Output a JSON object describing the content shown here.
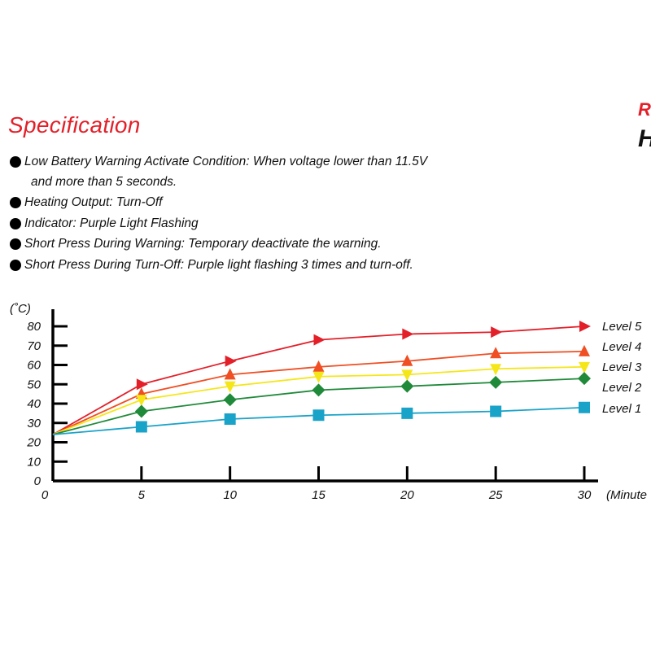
{
  "spec": {
    "title": "Specification",
    "items": [
      {
        "lines": [
          "Low Battery Warning Activate Condition: When voltage lower than 11.5V",
          "and more than 5 seconds."
        ]
      },
      {
        "lines": [
          "Heating Output: Turn-Off"
        ]
      },
      {
        "lines": [
          "Indicator: Purple Light Flashing"
        ]
      },
      {
        "lines": [
          "Short Press During Warning: Temporary deactivate the warning."
        ]
      },
      {
        "lines": [
          "Short Press During Turn-Off: Purple light flashing 3 times and turn-off."
        ]
      }
    ]
  },
  "brand": {
    "top": "R",
    "bottom": "H"
  },
  "chart_data": {
    "type": "line",
    "ylabel": "(˚C)",
    "xlabel": "(Minute",
    "x": [
      0,
      5,
      10,
      15,
      20,
      25,
      30
    ],
    "xlim": [
      0,
      30
    ],
    "ylim": [
      0,
      80
    ],
    "yticks": [
      0,
      10,
      20,
      30,
      40,
      50,
      60,
      70,
      80
    ],
    "xticks": [
      0,
      5,
      10,
      15,
      20,
      25,
      30
    ],
    "grid": false,
    "legend_placement": "right",
    "series": [
      {
        "name": "Level 5",
        "values": [
          24,
          50,
          62,
          73,
          76,
          77,
          80
        ],
        "color": "#e3202a",
        "marker": "triangle-right"
      },
      {
        "name": "Level 4",
        "values": [
          24,
          45,
          55,
          59,
          62,
          66,
          67
        ],
        "color": "#f04e23",
        "marker": "triangle-up"
      },
      {
        "name": "Level 3",
        "values": [
          24,
          42,
          49,
          54,
          55,
          58,
          59
        ],
        "color": "#f5e61a",
        "marker": "triangle-down"
      },
      {
        "name": "Level 2",
        "values": [
          24,
          36,
          42,
          47,
          49,
          51,
          53
        ],
        "color": "#1f8a3a",
        "marker": "diamond"
      },
      {
        "name": "Level 1",
        "values": [
          24,
          28,
          32,
          34,
          35,
          36,
          38
        ],
        "color": "#1aa3c8",
        "marker": "square"
      }
    ]
  }
}
